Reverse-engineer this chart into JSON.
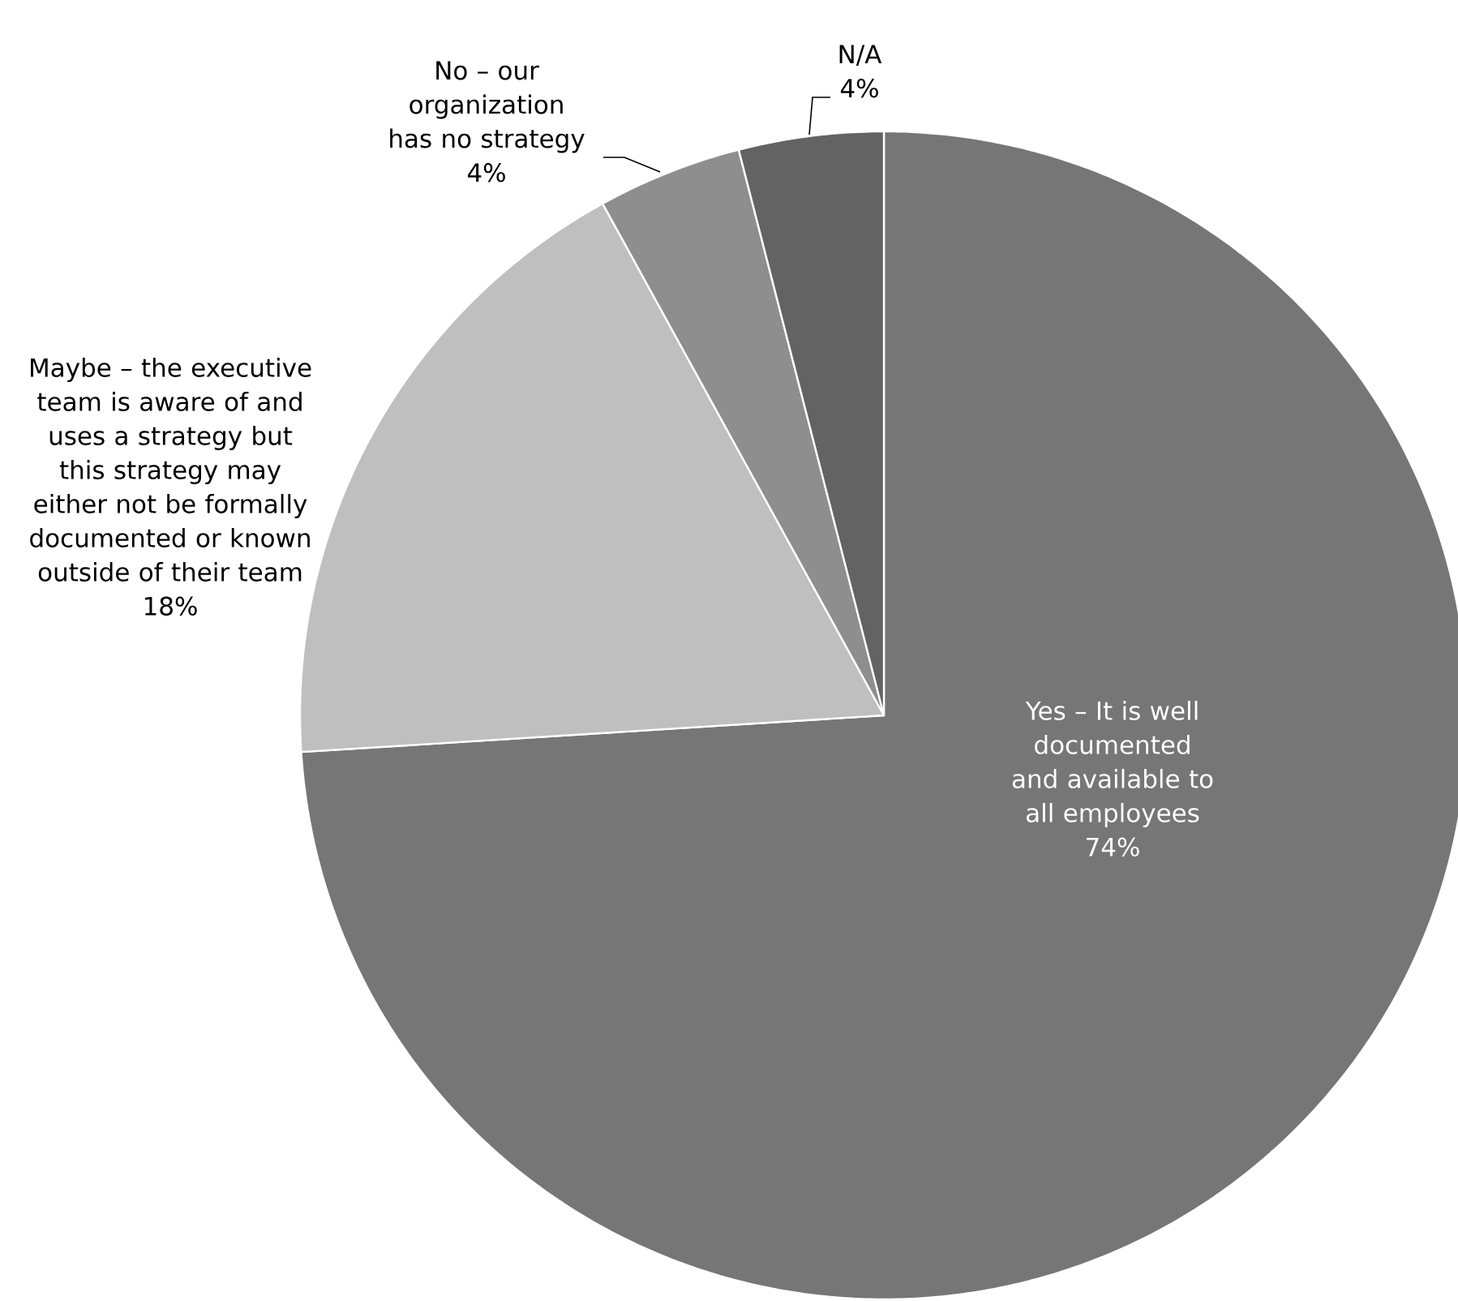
{
  "chart_data": {
    "type": "pie",
    "categories": [
      "Yes – It is well documented and available to all employees",
      "Maybe – the executive team is aware of and uses a strategy but this strategy may either not be formally documented or known outside of their team",
      "No – our organization has no strategy",
      "N/A"
    ],
    "values": [
      74,
      18,
      4,
      4
    ],
    "value_labels": [
      "74%",
      "18%",
      "4%",
      "4%"
    ],
    "colors": [
      "#767676",
      "#bfbfbf",
      "#8e8e8e",
      "#636363"
    ]
  }
}
